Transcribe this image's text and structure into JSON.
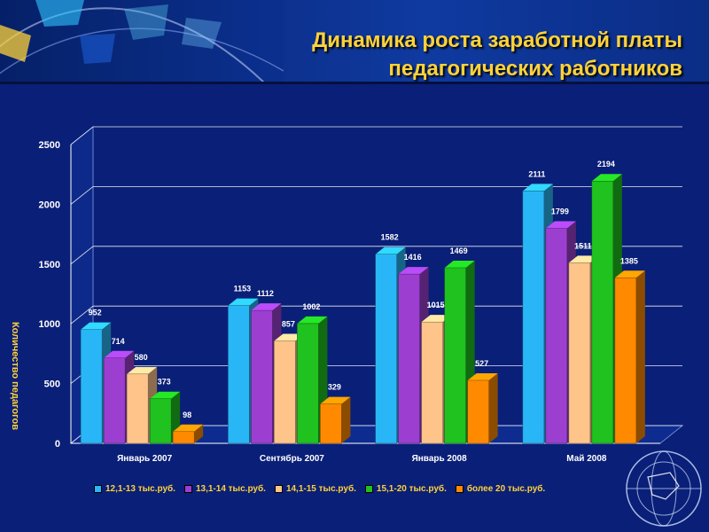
{
  "header": {
    "title_line_1": "Динамика роста заработной платы",
    "title_line_2": "педагогических работников"
  },
  "colors": {
    "title": "#ffd23a",
    "background": "#0a1f78",
    "series": [
      "#29b6f6",
      "#9c3fd0",
      "#ffc48a",
      "#1fc21f",
      "#ff8a00"
    ]
  },
  "chart_data": {
    "type": "bar",
    "title": "Динамика роста заработной платы педагогических работников",
    "xlabel": "",
    "ylabel": "Количество педагогов",
    "ylim": [
      0,
      2500
    ],
    "yticks": [
      0,
      500,
      1000,
      1500,
      2000,
      2500
    ],
    "grid": true,
    "legend_position": "bottom",
    "categories": [
      "Январь 2007",
      "Сентябрь 2007",
      "Январь 2008",
      "Май 2008"
    ],
    "series": [
      {
        "name": "12,1-13 тыс.руб.",
        "values": [
          952,
          1153,
          1582,
          2111
        ]
      },
      {
        "name": "13,1-14 тыс.руб.",
        "values": [
          714,
          1112,
          1416,
          1799
        ]
      },
      {
        "name": "14,1-15 тыс.руб.",
        "values": [
          580,
          857,
          1015,
          1511
        ]
      },
      {
        "name": "15,1-20 тыс.руб.",
        "values": [
          373,
          1002,
          1469,
          2194
        ]
      },
      {
        "name": "более 20 тыс.руб.",
        "values": [
          98,
          329,
          527,
          1385
        ]
      }
    ]
  }
}
